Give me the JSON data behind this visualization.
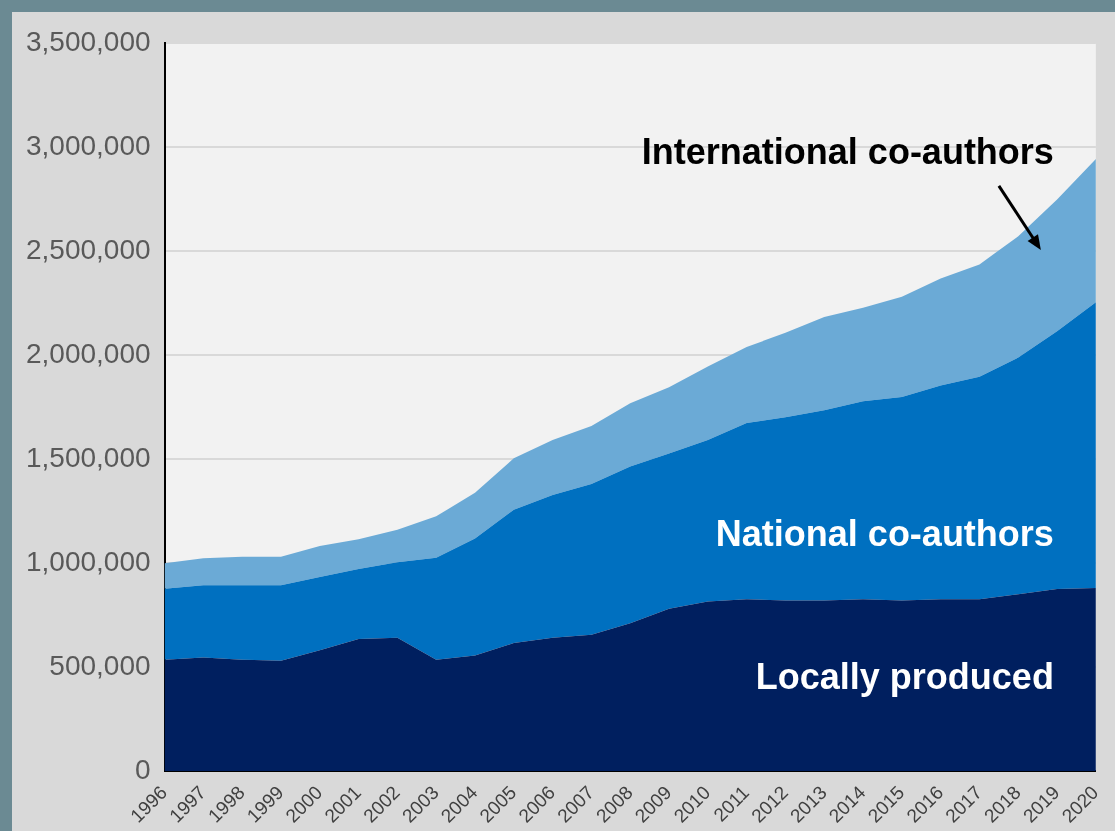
{
  "chart_data": {
    "type": "area",
    "stacked": true,
    "grid": "y",
    "legend": false,
    "categories": [
      "1996",
      "1997",
      "1998",
      "1999",
      "2000",
      "2001",
      "2002",
      "2003",
      "2004",
      "2005",
      "2006",
      "2007",
      "2008",
      "2009",
      "2010",
      "2011",
      "2012",
      "2013",
      "2014",
      "2015",
      "2016",
      "2017",
      "2018",
      "2019",
      "2020"
    ],
    "ylim": [
      0,
      3500000
    ],
    "yticks": [
      {
        "value": 0,
        "label": "0"
      },
      {
        "value": 500000,
        "label": "500,000"
      },
      {
        "value": 1000000,
        "label": "1,000,000"
      },
      {
        "value": 1500000,
        "label": "1,500,000"
      },
      {
        "value": 2000000,
        "label": "2,000,000"
      },
      {
        "value": 2500000,
        "label": "2,500,000"
      },
      {
        "value": 3000000,
        "label": "3,000,000"
      },
      {
        "value": 3500000,
        "label": "3,500,000"
      }
    ],
    "series": [
      {
        "name": "Locally produced",
        "color": "#001f5f",
        "values": [
          535000,
          545000,
          535000,
          530000,
          580000,
          635000,
          640000,
          535000,
          555000,
          615000,
          640000,
          655000,
          710000,
          780000,
          815000,
          825000,
          820000,
          820000,
          825000,
          820000,
          825000,
          825000,
          850000,
          875000,
          880000
        ]
      },
      {
        "name": "National co-authors",
        "color": "#0070c0",
        "values": [
          341000,
          348000,
          358000,
          363000,
          352000,
          336000,
          363000,
          490000,
          563000,
          641000,
          686000,
          725000,
          754000,
          746000,
          776000,
          847000,
          880000,
          914000,
          952000,
          977000,
          1028000,
          1070000,
          1137000,
          1239000,
          1373000
        ]
      },
      {
        "name": "International co-authors",
        "color": "#6baad6",
        "values": [
          123000,
          129000,
          137000,
          137000,
          149000,
          143000,
          157000,
          199000,
          219000,
          247000,
          265000,
          278000,
          304000,
          318000,
          353000,
          366000,
          406000,
          448000,
          450000,
          483000,
          514000,
          540000,
          583000,
          633000,
          689000
        ]
      }
    ]
  }
}
